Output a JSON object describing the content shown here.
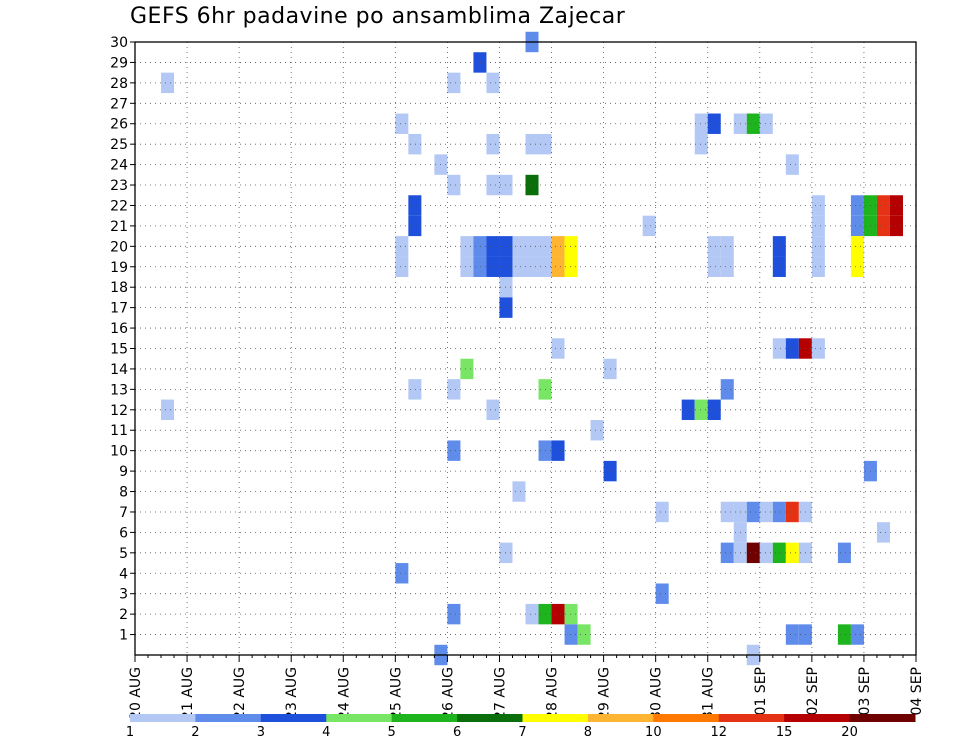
{
  "chart_data": {
    "type": "heatmap",
    "title": "GEFS 6hr padavine po ansamblima Zajecar",
    "xlabel": "",
    "ylabel": "",
    "x_tick_labels": [
      "20 AUG",
      "21 AUG",
      "22 AUG",
      "23 AUG",
      "24 AUG",
      "25 AUG",
      "26 AUG",
      "27 AUG",
      "28 AUG",
      "29 AUG",
      "30 AUG",
      "31 AUG",
      "01 SEP",
      "02 SEP",
      "03 SEP",
      "04 SEP"
    ],
    "y_tick_labels": [
      "1",
      "2",
      "3",
      "4",
      "5",
      "6",
      "7",
      "8",
      "9",
      "10",
      "11",
      "12",
      "13",
      "14",
      "15",
      "16",
      "17",
      "18",
      "19",
      "20",
      "21",
      "22",
      "23",
      "24",
      "25",
      "26",
      "27",
      "28",
      "29",
      "30"
    ],
    "xlim": [
      0,
      60
    ],
    "ylim": [
      0,
      30
    ],
    "grid": true,
    "legend": {
      "placement": "bottom",
      "labels": [
        "1",
        "2",
        "3",
        "4",
        "5",
        "6",
        "7",
        "8",
        "10",
        "12",
        "15",
        "20"
      ],
      "colors": [
        "#b4c8f5",
        "#5f8ceb",
        "#1e50dc",
        "#78e664",
        "#1eb41e",
        "#0a6e0a",
        "#ffff00",
        "#ffb432",
        "#ff7800",
        "#e63214",
        "#b40000",
        "#6e0000"
      ]
    },
    "cells": [
      {
        "t": 2,
        "m": 28,
        "c": 0
      },
      {
        "t": 2,
        "m": 12,
        "c": 0
      },
      {
        "t": 20,
        "m": 26,
        "c": 0
      },
      {
        "t": 20,
        "m": 20,
        "c": 0
      },
      {
        "t": 20,
        "m": 19,
        "c": 0
      },
      {
        "t": 20,
        "m": 4,
        "c": 1
      },
      {
        "t": 21,
        "m": 25,
        "c": 0
      },
      {
        "t": 21,
        "m": 22,
        "c": 2
      },
      {
        "t": 21,
        "m": 21,
        "c": 2
      },
      {
        "t": 21,
        "m": 13,
        "c": 0
      },
      {
        "t": 23,
        "m": 24,
        "c": 0
      },
      {
        "t": 23,
        "m": 0,
        "c": 1
      },
      {
        "t": 24,
        "m": 28,
        "c": 0
      },
      {
        "t": 24,
        "m": 23,
        "c": 0
      },
      {
        "t": 24,
        "m": 13,
        "c": 0
      },
      {
        "t": 24,
        "m": 10,
        "c": 1
      },
      {
        "t": 24,
        "m": 2,
        "c": 1
      },
      {
        "t": 25,
        "m": 20,
        "c": 0
      },
      {
        "t": 25,
        "m": 19,
        "c": 0
      },
      {
        "t": 25,
        "m": 14,
        "c": 3
      },
      {
        "t": 26,
        "m": 29,
        "c": 2
      },
      {
        "t": 26,
        "m": 20,
        "c": 1
      },
      {
        "t": 26,
        "m": 19,
        "c": 1
      },
      {
        "t": 27,
        "m": 28,
        "c": 0
      },
      {
        "t": 27,
        "m": 25,
        "c": 0
      },
      {
        "t": 27,
        "m": 23,
        "c": 0
      },
      {
        "t": 27,
        "m": 20,
        "c": 2
      },
      {
        "t": 27,
        "m": 19,
        "c": 2
      },
      {
        "t": 27,
        "m": 12,
        "c": 0
      },
      {
        "t": 28,
        "m": 23,
        "c": 0
      },
      {
        "t": 28,
        "m": 20,
        "c": 2
      },
      {
        "t": 28,
        "m": 19,
        "c": 2
      },
      {
        "t": 28,
        "m": 18,
        "c": 0
      },
      {
        "t": 28,
        "m": 17,
        "c": 2
      },
      {
        "t": 28,
        "m": 5,
        "c": 0
      },
      {
        "t": 29,
        "m": 20,
        "c": 0
      },
      {
        "t": 29,
        "m": 19,
        "c": 0
      },
      {
        "t": 29,
        "m": 8,
        "c": 0
      },
      {
        "t": 30,
        "m": 30,
        "c": 1
      },
      {
        "t": 30,
        "m": 25,
        "c": 0
      },
      {
        "t": 30,
        "m": 23,
        "c": 5
      },
      {
        "t": 30,
        "m": 20,
        "c": 0
      },
      {
        "t": 30,
        "m": 19,
        "c": 0
      },
      {
        "t": 30,
        "m": 2,
        "c": 0
      },
      {
        "t": 31,
        "m": 25,
        "c": 0
      },
      {
        "t": 31,
        "m": 20,
        "c": 0
      },
      {
        "t": 31,
        "m": 19,
        "c": 0
      },
      {
        "t": 31,
        "m": 13,
        "c": 3
      },
      {
        "t": 31,
        "m": 10,
        "c": 1
      },
      {
        "t": 31,
        "m": 2,
        "c": 4
      },
      {
        "t": 32,
        "m": 20,
        "c": 7
      },
      {
        "t": 32,
        "m": 19,
        "c": 7
      },
      {
        "t": 32,
        "m": 15,
        "c": 0
      },
      {
        "t": 32,
        "m": 10,
        "c": 2
      },
      {
        "t": 32,
        "m": 2,
        "c": 10
      },
      {
        "t": 33,
        "m": 20,
        "c": 6
      },
      {
        "t": 33,
        "m": 19,
        "c": 6
      },
      {
        "t": 33,
        "m": 2,
        "c": 3
      },
      {
        "t": 33,
        "m": 1,
        "c": 1
      },
      {
        "t": 34,
        "m": 1,
        "c": 3
      },
      {
        "t": 35,
        "m": 11,
        "c": 0
      },
      {
        "t": 36,
        "m": 14,
        "c": 0
      },
      {
        "t": 36,
        "m": 9,
        "c": 2
      },
      {
        "t": 39,
        "m": 21,
        "c": 0
      },
      {
        "t": 40,
        "m": 7,
        "c": 0
      },
      {
        "t": 40,
        "m": 3,
        "c": 1
      },
      {
        "t": 42,
        "m": 12,
        "c": 2
      },
      {
        "t": 43,
        "m": 26,
        "c": 0
      },
      {
        "t": 43,
        "m": 25,
        "c": 0
      },
      {
        "t": 43,
        "m": 12,
        "c": 3
      },
      {
        "t": 44,
        "m": 26,
        "c": 2
      },
      {
        "t": 44,
        "m": 20,
        "c": 0
      },
      {
        "t": 44,
        "m": 19,
        "c": 0
      },
      {
        "t": 44,
        "m": 12,
        "c": 2
      },
      {
        "t": 45,
        "m": 20,
        "c": 0
      },
      {
        "t": 45,
        "m": 19,
        "c": 0
      },
      {
        "t": 45,
        "m": 13,
        "c": 1
      },
      {
        "t": 45,
        "m": 7,
        "c": 0
      },
      {
        "t": 45,
        "m": 5,
        "c": 1
      },
      {
        "t": 46,
        "m": 26,
        "c": 0
      },
      {
        "t": 46,
        "m": 7,
        "c": 0
      },
      {
        "t": 46,
        "m": 6,
        "c": 0
      },
      {
        "t": 46,
        "m": 5,
        "c": 0
      },
      {
        "t": 47,
        "m": 26,
        "c": 4
      },
      {
        "t": 47,
        "m": 7,
        "c": 1
      },
      {
        "t": 47,
        "m": 5,
        "c": 11
      },
      {
        "t": 47,
        "m": 0,
        "c": 0
      },
      {
        "t": 48,
        "m": 26,
        "c": 0
      },
      {
        "t": 48,
        "m": 7,
        "c": 0
      },
      {
        "t": 48,
        "m": 5,
        "c": 0
      },
      {
        "t": 49,
        "m": 20,
        "c": 2
      },
      {
        "t": 49,
        "m": 19,
        "c": 2
      },
      {
        "t": 49,
        "m": 15,
        "c": 0
      },
      {
        "t": 49,
        "m": 7,
        "c": 1
      },
      {
        "t": 49,
        "m": 5,
        "c": 4
      },
      {
        "t": 50,
        "m": 24,
        "c": 0
      },
      {
        "t": 50,
        "m": 15,
        "c": 2
      },
      {
        "t": 50,
        "m": 7,
        "c": 9
      },
      {
        "t": 50,
        "m": 5,
        "c": 6
      },
      {
        "t": 50,
        "m": 1,
        "c": 1
      },
      {
        "t": 51,
        "m": 15,
        "c": 10
      },
      {
        "t": 51,
        "m": 7,
        "c": 0
      },
      {
        "t": 51,
        "m": 5,
        "c": 0
      },
      {
        "t": 51,
        "m": 1,
        "c": 1
      },
      {
        "t": 52,
        "m": 22,
        "c": 0
      },
      {
        "t": 52,
        "m": 21,
        "c": 0
      },
      {
        "t": 52,
        "m": 20,
        "c": 0
      },
      {
        "t": 52,
        "m": 19,
        "c": 0
      },
      {
        "t": 52,
        "m": 15,
        "c": 0
      },
      {
        "t": 54,
        "m": 5,
        "c": 1
      },
      {
        "t": 54,
        "m": 1,
        "c": 4
      },
      {
        "t": 55,
        "m": 22,
        "c": 1
      },
      {
        "t": 55,
        "m": 21,
        "c": 1
      },
      {
        "t": 55,
        "m": 20,
        "c": 6
      },
      {
        "t": 55,
        "m": 19,
        "c": 6
      },
      {
        "t": 55,
        "m": 1,
        "c": 1
      },
      {
        "t": 56,
        "m": 22,
        "c": 4
      },
      {
        "t": 56,
        "m": 21,
        "c": 4
      },
      {
        "t": 56,
        "m": 9,
        "c": 1
      },
      {
        "t": 57,
        "m": 22,
        "c": 9
      },
      {
        "t": 57,
        "m": 21,
        "c": 9
      },
      {
        "t": 57,
        "m": 6,
        "c": 0
      },
      {
        "t": 58,
        "m": 22,
        "c": 10
      },
      {
        "t": 58,
        "m": 21,
        "c": 10
      }
    ]
  }
}
